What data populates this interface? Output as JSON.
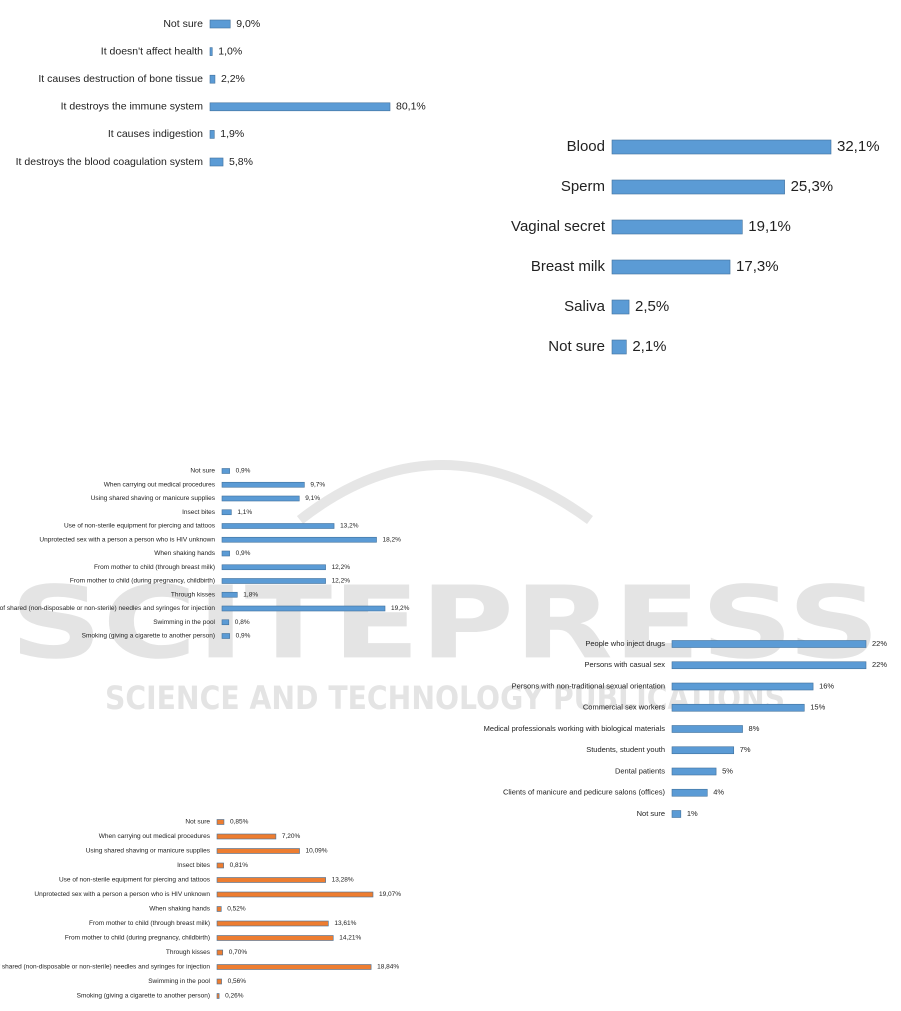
{
  "watermark": {
    "title": "SCITEPRESS",
    "subtitle": "SCIENCE AND TECHNOLOGY PUBLICATIONS"
  },
  "chart_data": [
    {
      "type": "bar",
      "color": "#5b9bd5",
      "categories": [
        "Not sure",
        "It doesn't affect health",
        "It causes destruction of bone tissue",
        "It destroys the immune system",
        "It causes indigestion",
        "It destroys the blood coagulation system"
      ],
      "values": [
        9.0,
        1.0,
        2.2,
        80.1,
        1.9,
        5.8
      ],
      "value_labels": [
        "9,0%",
        "1,0%",
        "2,2%",
        "80,1%",
        "1,9%",
        "5,8%"
      ]
    },
    {
      "type": "bar",
      "color": "#5b9bd5",
      "categories": [
        "Blood",
        "Sperm",
        "Vaginal secret",
        "Breast milk",
        "Saliva",
        "Not sure"
      ],
      "values": [
        32.1,
        25.3,
        19.1,
        17.3,
        2.5,
        2.1
      ],
      "value_labels": [
        "32,1%",
        "25,3%",
        "19,1%",
        "17,3%",
        "2,5%",
        "2,1%"
      ]
    },
    {
      "type": "bar",
      "color": "#5b9bd5",
      "categories": [
        "Not sure",
        "When carrying out medical procedures",
        "Using shared shaving or manicure supplies",
        "Insect bites",
        "Use of non-sterile equipment for piercing and tattoos",
        "Unprotected sex with a person a person who is HIV unknown",
        "When shaking hands",
        "From mother to child (through breast milk)",
        "From mother to child (during pregnancy, childbirth)",
        "Through kisses",
        "Use of shared (non-disposable or non-sterile) needles and syringes for injection",
        "Swimming in the pool",
        "Smoking (giving a cigarette to another person)"
      ],
      "values": [
        0.9,
        9.7,
        9.1,
        1.1,
        13.2,
        18.2,
        0.9,
        12.2,
        12.2,
        1.8,
        19.2,
        0.8,
        0.9
      ],
      "value_labels": [
        "0,9%",
        "9,7%",
        "9,1%",
        "1,1%",
        "13,2%",
        "18,2%",
        "0,9%",
        "12,2%",
        "12,2%",
        "1,8%",
        "19,2%",
        "0,8%",
        "0,9%"
      ]
    },
    {
      "type": "bar",
      "color": "#5b9bd5",
      "categories": [
        "People who inject drugs",
        "Persons with casual sex",
        "Persons with non-traditional sexual orientation",
        "Commercial sex workers",
        "Medical professionals working with biological materials",
        "Students, student youth",
        "Dental patients",
        "Clients of manicure and pedicure salons (offices)",
        "Not sure"
      ],
      "values": [
        22,
        22,
        16,
        15,
        8,
        7,
        5,
        4,
        1
      ],
      "value_labels": [
        "22%",
        "22%",
        "16%",
        "15%",
        "8%",
        "7%",
        "5%",
        "4%",
        "1%"
      ]
    },
    {
      "type": "bar",
      "color": "#ed7d31",
      "categories": [
        "Not sure",
        "When carrying out medical procedures",
        "Using shared shaving or manicure supplies",
        "Insect bites",
        "Use of non-sterile equipment for piercing and tattoos",
        "Unprotected sex with a person a person who is HIV unknown",
        "When shaking hands",
        "From mother to child (through breast milk)",
        "From mother to child (during pregnancy, childbirth)",
        "Through kisses",
        "Use of shared (non-disposable or non-sterile) needles and syringes for injection",
        "Swimming in the pool",
        "Smoking (giving a cigarette to another person)"
      ],
      "values": [
        0.85,
        7.2,
        10.09,
        0.81,
        13.28,
        19.07,
        0.52,
        13.61,
        14.21,
        0.7,
        18.84,
        0.56,
        0.26
      ],
      "value_labels": [
        "0,85%",
        "7,20%",
        "10,09%",
        "0,81%",
        "13,28%",
        "19,07%",
        "0,52%",
        "13,61%",
        "14,21%",
        "0,70%",
        "18,84%",
        "0,56%",
        "0,26%"
      ]
    }
  ]
}
